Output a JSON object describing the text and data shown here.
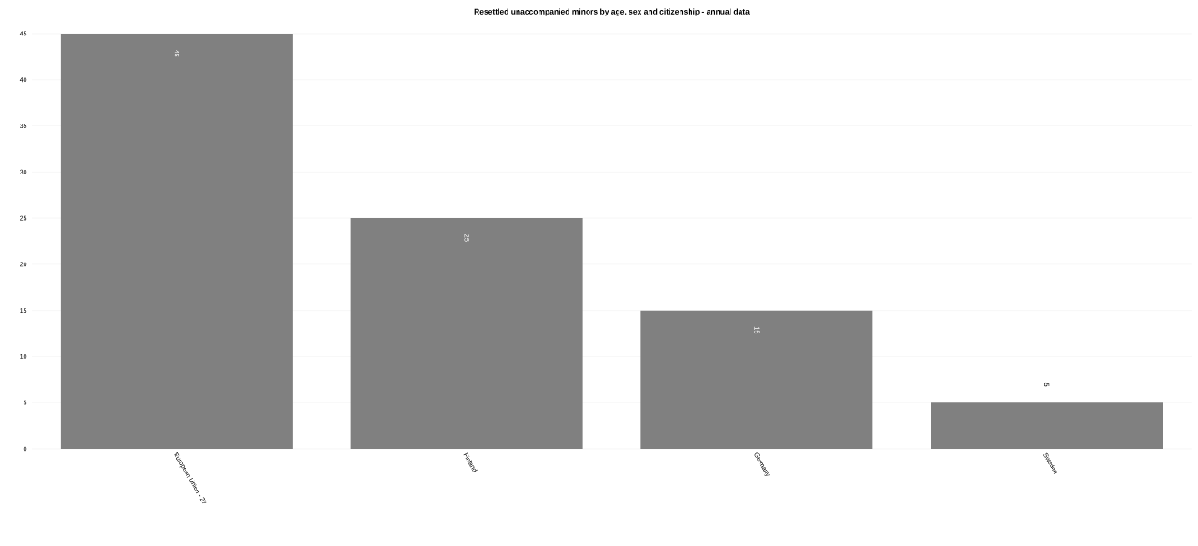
{
  "chart_data": {
    "type": "bar",
    "title": "Resettled unaccompanied minors by age, sex and citizenship - annual data",
    "categories": [
      "European Union - 27",
      "Finland",
      "Germany",
      "Sweden"
    ],
    "values": [
      45,
      25,
      15,
      5
    ],
    "color": "#808080",
    "ylim": [
      0,
      45
    ],
    "yticks": [
      0,
      5,
      10,
      15,
      20,
      25,
      30,
      35,
      40,
      45
    ],
    "grid": "y",
    "data_labels": true
  }
}
